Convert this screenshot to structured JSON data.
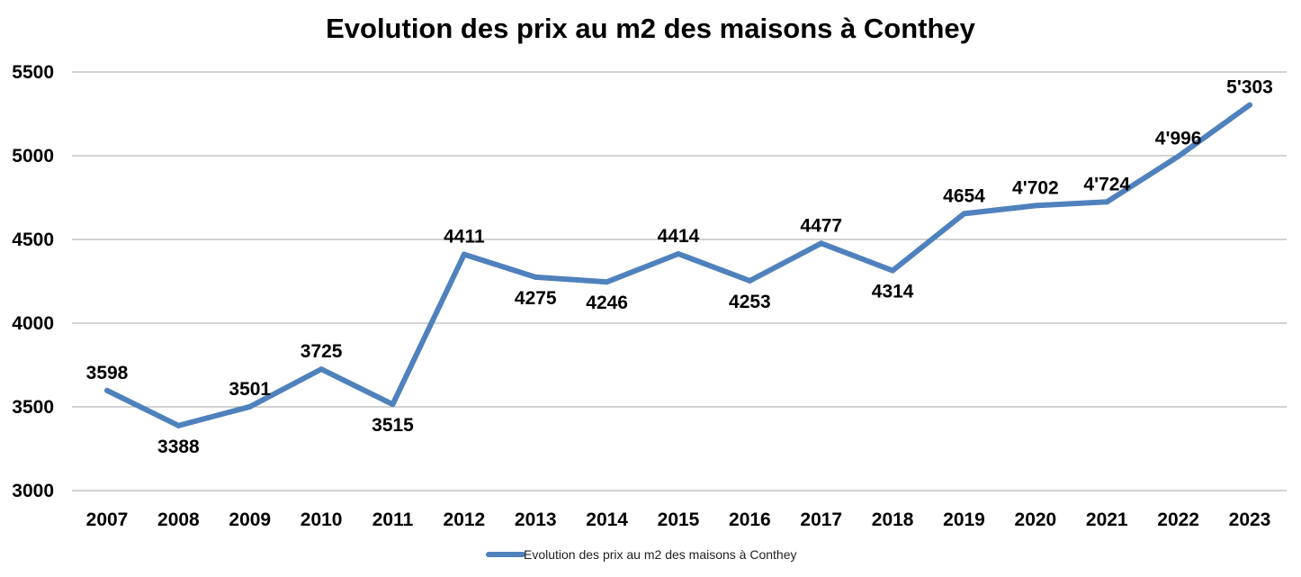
{
  "chart_data": {
    "type": "line",
    "title": "Evolution des prix au m2 des maisons à Conthey",
    "xlabel": "",
    "ylabel": "",
    "ylim": [
      3000,
      5500
    ],
    "yticks": [
      "3000",
      "3500",
      "4000",
      "4500",
      "5000",
      "5500"
    ],
    "ytick_values": [
      3000,
      3500,
      4000,
      4500,
      5000,
      5500
    ],
    "categories": [
      "2007",
      "2008",
      "2009",
      "2010",
      "2011",
      "2012",
      "2013",
      "2014",
      "2015",
      "2016",
      "2017",
      "2018",
      "2019",
      "2020",
      "2021",
      "2022",
      "2023"
    ],
    "series": [
      {
        "name": "Evolution des prix au m2 des maisons à Conthey",
        "values": [
          3598,
          3388,
          3501,
          3725,
          3515,
          4411,
          4275,
          4246,
          4414,
          4253,
          4477,
          4314,
          4654,
          4702,
          4724,
          4996,
          5303
        ],
        "labels": [
          "3598",
          "3388",
          "3501",
          "3725",
          "3515",
          "4411",
          "4275",
          "4246",
          "4414",
          "4253",
          "4477",
          "4314",
          "4654",
          "4'702",
          "4'724",
          "4'996",
          "5'303"
        ],
        "label_positions": [
          "above",
          "below",
          "above",
          "above",
          "below",
          "above",
          "below",
          "below",
          "above",
          "below",
          "above",
          "below",
          "above",
          "above",
          "above",
          "above",
          "above"
        ]
      }
    ],
    "grid": true,
    "legend": "bottom",
    "colors": {
      "line": "#4F81BD",
      "grid": "#A6A6A6"
    }
  }
}
